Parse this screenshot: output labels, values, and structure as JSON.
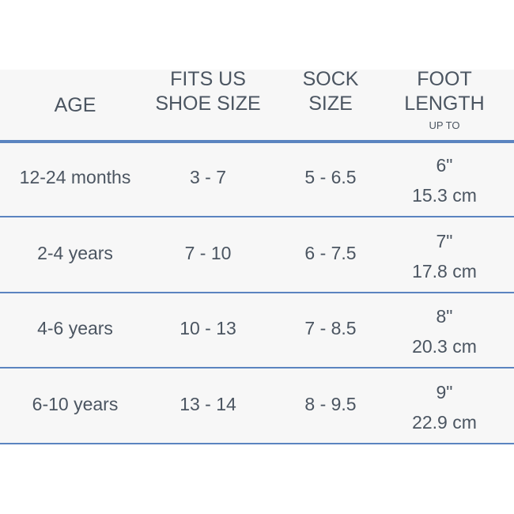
{
  "header": {
    "age": "AGE",
    "shoe_line1": "FITS US",
    "shoe_line2": "SHOE SIZE",
    "sock_line1": "SOCK",
    "sock_line2": "SIZE",
    "foot_line1": "FOOT",
    "foot_line2": "LENGTH",
    "foot_sub": "UP TO"
  },
  "rows": [
    {
      "age": "12-24 months",
      "shoe": "3 - 7",
      "sock": "5 - 6.5",
      "inches": "6\"",
      "cm": "15.3 cm"
    },
    {
      "age": "2-4 years",
      "shoe": "7 - 10",
      "sock": "6 - 7.5",
      "inches": "7\"",
      "cm": "17.8 cm"
    },
    {
      "age": "4-6 years",
      "shoe": "10 - 13",
      "sock": "7 - 8.5",
      "inches": "8\"",
      "cm": "20.3 cm"
    },
    {
      "age": "6-10 years",
      "shoe": "13 - 14",
      "sock": "8 - 9.5",
      "inches": "9\"",
      "cm": "22.9 cm"
    }
  ],
  "colors": {
    "accent": "#5b84c0",
    "text": "#4b5561",
    "background": "#f7f7f7"
  }
}
